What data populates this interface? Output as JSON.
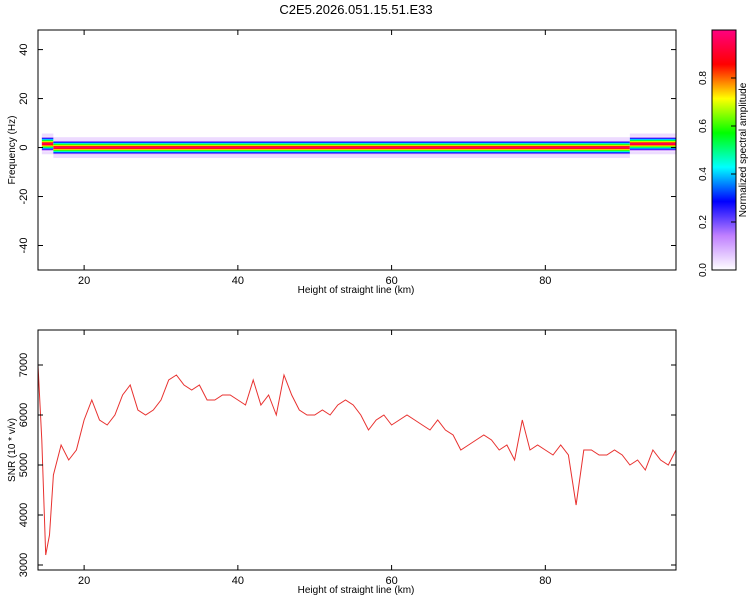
{
  "figure": {
    "title": "C2E5.2026.051.15.51.E33"
  },
  "chart_data": [
    {
      "type": "heatmap",
      "name": "spectrogram",
      "xlabel": "Height of straight line (km)",
      "ylabel": "Frequency (Hz)",
      "xlim": [
        14,
        97
      ],
      "ylim": [
        -50,
        48
      ],
      "xticks": [
        20,
        40,
        60,
        80
      ],
      "yticks": [
        40,
        20,
        0,
        -20,
        -40
      ],
      "grid": false,
      "colorbar": {
        "label": "Normalized spectral amplitude",
        "range": [
          0.0,
          1.0
        ],
        "ticks": [
          0.0,
          0.2,
          0.4,
          0.6,
          0.8
        ],
        "colormap": [
          "#ff0080",
          "#ff0000",
          "#ffff00",
          "#00ff00",
          "#00ffff",
          "#0000ff",
          "#c080ff",
          "#ffffff"
        ]
      },
      "band": {
        "center_frequency_hz": 0,
        "segments": [
          {
            "x_start": 14.5,
            "x_end": 16.0,
            "center_hz": 1.5,
            "amplitude": 0.95
          },
          {
            "x_start": 16.0,
            "x_end": 91.0,
            "center_hz": 0.0,
            "amplitude": 0.92
          },
          {
            "x_start": 91.0,
            "x_end": 97.0,
            "center_hz": 1.5,
            "amplitude": 0.9
          }
        ],
        "low_amplitude_halo_hz": 3
      }
    },
    {
      "type": "line",
      "name": "snr",
      "xlabel": "Height of straight line (km)",
      "ylabel": "SNR (10 * v/v)",
      "xlim": [
        14,
        97
      ],
      "ylim": [
        2900,
        7700
      ],
      "xticks": [
        20,
        40,
        60,
        80
      ],
      "yticks": [
        3000,
        4000,
        5000,
        6000,
        7000
      ],
      "grid": false,
      "series": [
        {
          "color": "#e8312f",
          "x": [
            14,
            14.5,
            15,
            15.5,
            16,
            17,
            18,
            19,
            20,
            21,
            22,
            23,
            24,
            25,
            26,
            27,
            28,
            29,
            30,
            31,
            32,
            33,
            34,
            35,
            36,
            37,
            38,
            39,
            40,
            41,
            42,
            43,
            44,
            45,
            46,
            47,
            48,
            49,
            50,
            51,
            52,
            53,
            54,
            55,
            56,
            57,
            58,
            59,
            60,
            61,
            62,
            63,
            64,
            65,
            66,
            67,
            68,
            69,
            70,
            71,
            72,
            73,
            74,
            75,
            76,
            77,
            78,
            79,
            80,
            81,
            82,
            83,
            84,
            85,
            86,
            87,
            88,
            89,
            90,
            91,
            92,
            93,
            94,
            95,
            96,
            97
          ],
          "y": [
            7000,
            5500,
            3200,
            3600,
            4800,
            5400,
            5100,
            5300,
            5900,
            6300,
            5900,
            5800,
            6000,
            6400,
            6600,
            6100,
            6000,
            6100,
            6300,
            6700,
            6800,
            6600,
            6500,
            6600,
            6300,
            6300,
            6400,
            6400,
            6300,
            6200,
            6700,
            6200,
            6400,
            6000,
            6800,
            6400,
            6100,
            6000,
            6000,
            6100,
            6000,
            6200,
            6300,
            6200,
            6000,
            5700,
            5900,
            6000,
            5800,
            5900,
            6000,
            5900,
            5800,
            5700,
            5900,
            5700,
            5600,
            5300,
            5400,
            5500,
            5600,
            5500,
            5300,
            5400,
            5100,
            5900,
            5300,
            5400,
            5300,
            5200,
            5400,
            5200,
            4200,
            5300,
            5300,
            5200,
            5200,
            5300,
            5200,
            5000,
            5100,
            4900,
            5300,
            5100,
            5000,
            5300
          ]
        }
      ]
    }
  ]
}
